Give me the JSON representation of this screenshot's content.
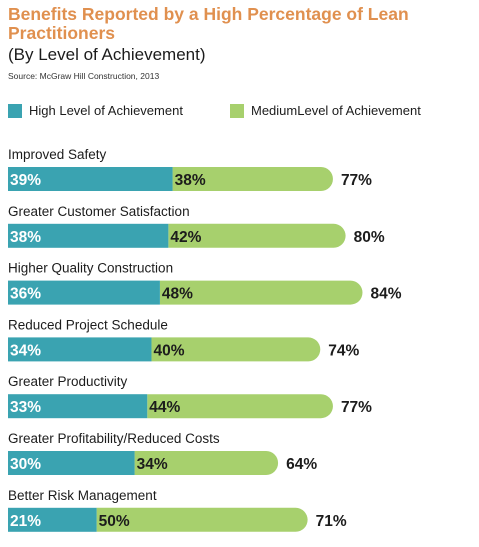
{
  "title": "Benefits Reported by a High Percentage of Lean Practitioners",
  "subtitle": "(By Level of Achievement)",
  "source": "Source: McGraw Hill Construction, 2013",
  "colors": {
    "title": "#e0904f",
    "high": "#3aa3b1",
    "medium": "#a7d06d",
    "label_text": "#ffffff"
  },
  "chart_data": {
    "type": "bar",
    "stacked": true,
    "orientation": "horizontal",
    "categories": [
      "Improved Safety",
      "Greater Customer Satisfaction",
      "Higher Quality Construction",
      "Reduced Project Schedule",
      "Greater Productivity",
      "Greater Profitability/Reduced Costs",
      "Better Risk Management"
    ],
    "series": [
      {
        "name": "High Level of Achievement",
        "values": [
          39,
          38,
          36,
          34,
          33,
          30,
          21
        ],
        "labels": [
          "39%",
          "38%",
          "36%",
          "34%",
          "33%",
          "30%",
          "21%"
        ]
      },
      {
        "name": "MediumLevel of Achievement",
        "values": [
          38,
          42,
          48,
          40,
          44,
          34,
          50
        ],
        "labels": [
          "38%",
          "42%",
          "48%",
          "40%",
          "44%",
          "34%",
          "50%"
        ]
      }
    ],
    "totals": [
      77,
      80,
      84,
      74,
      77,
      64,
      71
    ],
    "total_labels": [
      "77%",
      "80%",
      "84%",
      "74%",
      "77%",
      "64%",
      "71%"
    ],
    "unit": "%",
    "legend_position": "top-left",
    "grid": false
  }
}
